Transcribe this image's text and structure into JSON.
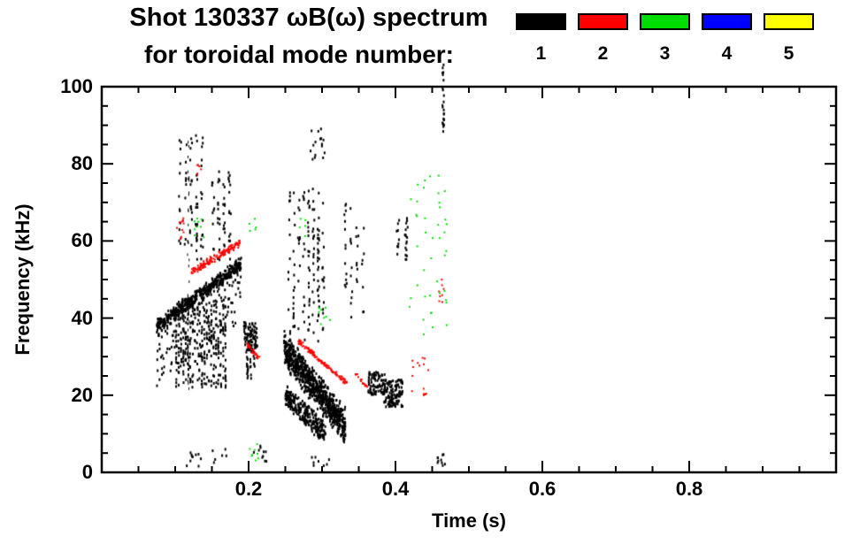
{
  "header": {
    "title_line1": "Shot 130337 ωB(ω) spectrum",
    "title_line2": "for toroidal mode number:"
  },
  "chart_data": {
    "type": "scatter",
    "title": "Shot 130337 ωB(ω) spectrum for toroidal mode number",
    "xlabel": "Time (s)",
    "ylabel": "Frequency (kHz)",
    "xlim": [
      0,
      1.0
    ],
    "ylim": [
      0,
      100
    ],
    "grid": false,
    "legend_position": "top-right",
    "x_ticks": [
      {
        "value": 0.2,
        "label": "0.2"
      },
      {
        "value": 0.4,
        "label": "0.4"
      },
      {
        "value": 0.6,
        "label": "0.6"
      },
      {
        "value": 0.8,
        "label": "0.8"
      }
    ],
    "x_minor_step": 0.05,
    "y_ticks": [
      {
        "value": 0,
        "label": "0"
      },
      {
        "value": 20,
        "label": "20"
      },
      {
        "value": 40,
        "label": "40"
      },
      {
        "value": 60,
        "label": "60"
      },
      {
        "value": 80,
        "label": "80"
      },
      {
        "value": 100,
        "label": "100"
      }
    ],
    "y_minor_step": 5,
    "legend": {
      "items": [
        {
          "mode": 1,
          "label": "1",
          "color": "#000000"
        },
        {
          "mode": 2,
          "label": "2",
          "color": "#ff0000"
        },
        {
          "mode": 3,
          "label": "3",
          "color": "#00dd00"
        },
        {
          "mode": 4,
          "label": "4",
          "color": "#0000ff"
        },
        {
          "mode": 5,
          "label": "5",
          "color": "#ffff00"
        }
      ]
    },
    "clusters": [
      {
        "mode": 1,
        "type": "ridge",
        "t": [
          0.075,
          0.19
        ],
        "f": [
          38,
          54
        ],
        "jitter": 2.2,
        "n": 650,
        "tail": 16,
        "tailp": 0.3,
        "dot": [
          2,
          3
        ]
      },
      {
        "mode": 1,
        "type": "columns",
        "t": [
          0.1,
          0.17
        ],
        "f": [
          22,
          44
        ],
        "cols": 22,
        "n": 300,
        "dot": [
          2,
          3
        ]
      },
      {
        "mode": 1,
        "type": "columns",
        "t": [
          0.103,
          0.14
        ],
        "f": [
          55,
          88
        ],
        "cols": 5,
        "n": 70,
        "dot": [
          2,
          3
        ]
      },
      {
        "mode": 1,
        "type": "columns",
        "t": [
          0.148,
          0.178
        ],
        "f": [
          55,
          79
        ],
        "cols": 4,
        "n": 55,
        "dot": [
          2,
          3
        ]
      },
      {
        "mode": 1,
        "type": "columns",
        "t": [
          0.115,
          0.121
        ],
        "f": [
          20,
          86
        ],
        "cols": 1,
        "n": 40,
        "dot": [
          1,
          3
        ]
      },
      {
        "mode": 1,
        "type": "blob",
        "t": [
          0.193,
          0.212
        ],
        "f": [
          31,
          39
        ],
        "n": 90,
        "dot": [
          2,
          3
        ]
      },
      {
        "mode": 1,
        "type": "columns",
        "t": [
          0.196,
          0.21
        ],
        "f": [
          24,
          31
        ],
        "cols": 3,
        "n": 25,
        "dot": [
          2,
          3
        ]
      },
      {
        "mode": 1,
        "type": "ridge",
        "t": [
          0.248,
          0.332
        ],
        "f": [
          32,
          12
        ],
        "jitter": 5,
        "n": 800,
        "dot": [
          2,
          3
        ]
      },
      {
        "mode": 1,
        "type": "ridge",
        "t": [
          0.25,
          0.305
        ],
        "f": [
          20,
          10
        ],
        "jitter": 3.5,
        "n": 260,
        "dot": [
          2,
          3
        ]
      },
      {
        "mode": 1,
        "type": "columns",
        "t": [
          0.252,
          0.305
        ],
        "f": [
          34,
          74
        ],
        "cols": 8,
        "n": 140,
        "dot": [
          2,
          3
        ]
      },
      {
        "mode": 1,
        "type": "blob",
        "t": [
          0.283,
          0.305
        ],
        "f": [
          81,
          91
        ],
        "n": 16,
        "dot": [
          2,
          3
        ]
      },
      {
        "mode": 1,
        "type": "columns",
        "t": [
          0.328,
          0.36
        ],
        "f": [
          40,
          70
        ],
        "cols": 4,
        "n": 40,
        "dot": [
          2,
          3
        ]
      },
      {
        "mode": 1,
        "type": "blob",
        "t": [
          0.363,
          0.386
        ],
        "f": [
          20,
          26
        ],
        "n": 90,
        "dot": [
          2,
          3
        ]
      },
      {
        "mode": 1,
        "type": "blob",
        "t": [
          0.384,
          0.41
        ],
        "f": [
          17,
          24
        ],
        "n": 120,
        "dot": [
          2,
          3
        ]
      },
      {
        "mode": 1,
        "type": "columns",
        "t": [
          0.398,
          0.42
        ],
        "f": [
          55,
          66
        ],
        "cols": 2,
        "n": 26,
        "dot": [
          2,
          3
        ]
      },
      {
        "mode": 1,
        "type": "columns",
        "t": [
          0.462,
          0.468
        ],
        "f": [
          88,
          107
        ],
        "cols": 1,
        "n": 24,
        "dot": [
          2,
          3
        ]
      },
      {
        "mode": 1,
        "type": "blob",
        "t": [
          0.457,
          0.47
        ],
        "f": [
          0,
          6
        ],
        "n": 10,
        "dot": [
          2,
          3
        ]
      },
      {
        "mode": 1,
        "type": "blob",
        "t": [
          0.115,
          0.14
        ],
        "f": [
          1,
          6
        ],
        "n": 10,
        "dot": [
          2,
          3
        ]
      },
      {
        "mode": 1,
        "type": "blob",
        "t": [
          0.15,
          0.17
        ],
        "f": [
          2,
          6
        ],
        "n": 6,
        "dot": [
          2,
          3
        ]
      },
      {
        "mode": 1,
        "type": "blob",
        "t": [
          0.205,
          0.225
        ],
        "f": [
          2,
          7
        ],
        "n": 10,
        "dot": [
          2,
          3
        ]
      },
      {
        "mode": 1,
        "type": "blob",
        "t": [
          0.28,
          0.31
        ],
        "f": [
          1,
          4
        ],
        "n": 8,
        "dot": [
          2,
          3
        ]
      },
      {
        "mode": 2,
        "type": "ridge",
        "t": [
          0.122,
          0.188
        ],
        "f": [
          52,
          59.5
        ],
        "jitter": 1.1,
        "n": 150,
        "dot": [
          2,
          2
        ]
      },
      {
        "mode": 2,
        "type": "blob",
        "t": [
          0.102,
          0.112
        ],
        "f": [
          60,
          66
        ],
        "n": 12,
        "dot": [
          2,
          2
        ]
      },
      {
        "mode": 2,
        "type": "blob",
        "t": [
          0.127,
          0.136
        ],
        "f": [
          77,
          80
        ],
        "n": 6,
        "dot": [
          2,
          2
        ]
      },
      {
        "mode": 2,
        "type": "ridge",
        "t": [
          0.198,
          0.216
        ],
        "f": [
          33,
          29
        ],
        "jitter": 0.8,
        "n": 28,
        "dot": [
          2,
          2
        ]
      },
      {
        "mode": 2,
        "type": "ridge",
        "t": [
          0.268,
          0.334
        ],
        "f": [
          34,
          23
        ],
        "jitter": 0.8,
        "n": 120,
        "dot": [
          2,
          2
        ]
      },
      {
        "mode": 2,
        "type": "ridge",
        "t": [
          0.345,
          0.362
        ],
        "f": [
          25.5,
          22
        ],
        "jitter": 0.7,
        "n": 18,
        "dot": [
          2,
          2
        ]
      },
      {
        "mode": 2,
        "type": "blob",
        "t": [
          0.415,
          0.447
        ],
        "f": [
          20,
          30
        ],
        "n": 16,
        "dot": [
          2,
          2
        ]
      },
      {
        "mode": 2,
        "type": "blob",
        "t": [
          0.458,
          0.468
        ],
        "f": [
          44,
          50
        ],
        "n": 8,
        "dot": [
          2,
          2
        ]
      },
      {
        "mode": 3,
        "type": "blob",
        "t": [
          0.124,
          0.139
        ],
        "f": [
          60,
          66
        ],
        "n": 9,
        "dot": [
          2,
          2
        ]
      },
      {
        "mode": 3,
        "type": "blob",
        "t": [
          0.2,
          0.212
        ],
        "f": [
          62,
          66
        ],
        "n": 5,
        "dot": [
          2,
          2
        ]
      },
      {
        "mode": 3,
        "type": "blob",
        "t": [
          0.199,
          0.214
        ],
        "f": [
          3,
          8
        ],
        "n": 8,
        "dot": [
          2,
          2
        ]
      },
      {
        "mode": 3,
        "type": "columns",
        "t": [
          0.415,
          0.473
        ],
        "f": [
          35,
          78
        ],
        "cols": 6,
        "n": 42,
        "dot": [
          2,
          2
        ]
      },
      {
        "mode": 3,
        "type": "blob",
        "t": [
          0.295,
          0.315
        ],
        "f": [
          37,
          43
        ],
        "n": 8,
        "dot": [
          2,
          2
        ]
      },
      {
        "mode": 3,
        "type": "blob",
        "t": [
          0.268,
          0.278
        ],
        "f": [
          60,
          66
        ],
        "n": 5,
        "dot": [
          2,
          2
        ]
      }
    ]
  }
}
